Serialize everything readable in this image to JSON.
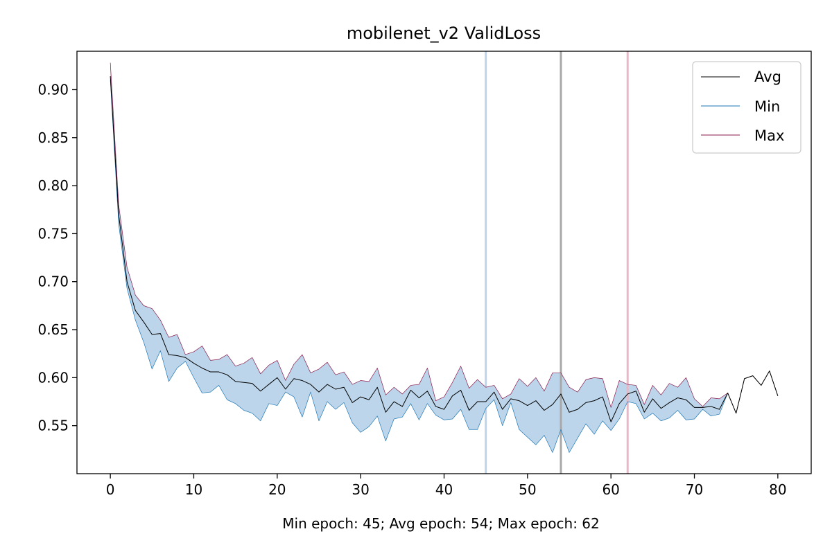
{
  "chart_data": {
    "type": "line",
    "title": "mobilenet_v2 ValidLoss",
    "xlabel": "Min epoch: 45; Avg epoch: 54; Max epoch: 62",
    "ylabel": "",
    "xlim": [
      -4,
      84
    ],
    "ylim": [
      0.5,
      0.94
    ],
    "xticks": [
      0,
      10,
      20,
      30,
      40,
      50,
      60,
      70,
      80
    ],
    "xtick_labels": [
      "0",
      "10",
      "20",
      "30",
      "40",
      "50",
      "60",
      "70",
      "80"
    ],
    "yticks": [
      0.55,
      0.6,
      0.65,
      0.7,
      0.75,
      0.8,
      0.85,
      0.9
    ],
    "ytick_labels": [
      "0.55",
      "0.60",
      "0.65",
      "0.70",
      "0.75",
      "0.80",
      "0.85",
      "0.90"
    ],
    "grid": false,
    "legend": {
      "position": "top-right",
      "entries": [
        "Avg",
        "Min",
        "Max"
      ]
    },
    "colors": {
      "avg": "#000000",
      "min": "#1f77b4",
      "max": "#8b1a4b",
      "band": "#bcd5ea",
      "vline_min": "#bcd5ea",
      "vline_avg": "#a8a8a8",
      "vline_max": "#e3bac8"
    },
    "vlines": {
      "min_epoch": 45,
      "avg_epoch": 54,
      "max_epoch": 62
    },
    "x": [
      0,
      1,
      2,
      3,
      4,
      5,
      6,
      7,
      8,
      9,
      10,
      11,
      12,
      13,
      14,
      15,
      16,
      17,
      18,
      19,
      20,
      21,
      22,
      23,
      24,
      25,
      26,
      27,
      28,
      29,
      30,
      31,
      32,
      33,
      34,
      35,
      36,
      37,
      38,
      39,
      40,
      41,
      42,
      43,
      44,
      45,
      46,
      47,
      48,
      49,
      50,
      51,
      52,
      53,
      54,
      55,
      56,
      57,
      58,
      59,
      60,
      61,
      62,
      63,
      64,
      65,
      66,
      67,
      68,
      69,
      70,
      71,
      72,
      73,
      74,
      75,
      76,
      77,
      78,
      79,
      80
    ],
    "series": [
      {
        "name": "Avg",
        "values": [
          0.914,
          0.77,
          0.7,
          0.67,
          0.658,
          0.645,
          0.646,
          0.624,
          0.623,
          0.621,
          0.615,
          0.61,
          0.606,
          0.606,
          0.603,
          0.596,
          0.595,
          0.594,
          0.586,
          0.593,
          0.6,
          0.588,
          0.599,
          0.597,
          0.593,
          0.585,
          0.593,
          0.588,
          0.59,
          0.574,
          0.58,
          0.577,
          0.59,
          0.564,
          0.575,
          0.57,
          0.587,
          0.579,
          0.586,
          0.57,
          0.567,
          0.581,
          0.587,
          0.566,
          0.575,
          0.575,
          0.585,
          0.567,
          0.578,
          0.576,
          0.571,
          0.576,
          0.566,
          0.572,
          0.583,
          0.564,
          0.567,
          0.574,
          0.576,
          0.58,
          0.554,
          0.573,
          0.583,
          0.586,
          0.564,
          0.578,
          0.568,
          0.574,
          0.579,
          0.577,
          0.569,
          0.569,
          0.57,
          0.567,
          0.584,
          0.563,
          0.599,
          0.602,
          0.592,
          0.607,
          0.581
        ]
      },
      {
        "name": "Min",
        "values": [
          0.91,
          0.76,
          0.693,
          0.66,
          0.637,
          0.609,
          0.628,
          0.596,
          0.61,
          0.617,
          0.6,
          0.584,
          0.585,
          0.592,
          0.577,
          0.573,
          0.566,
          0.563,
          0.555,
          0.573,
          0.571,
          0.585,
          0.58,
          0.559,
          0.585,
          0.555,
          0.575,
          0.567,
          0.574,
          0.553,
          0.543,
          0.549,
          0.56,
          0.534,
          0.557,
          0.559,
          0.573,
          0.556,
          0.573,
          0.561,
          0.556,
          0.557,
          0.567,
          0.546,
          0.546,
          0.568,
          0.577,
          0.55,
          0.574,
          0.546,
          0.538,
          0.53,
          0.54,
          0.522,
          0.546,
          0.522,
          0.537,
          0.552,
          0.541,
          0.555,
          0.545,
          0.557,
          0.575,
          0.573,
          0.557,
          0.563,
          0.555,
          0.558,
          0.566,
          0.556,
          0.557,
          0.567,
          0.56,
          0.562,
          0.584,
          0.563,
          0.599,
          0.602,
          0.592,
          0.607,
          0.581
        ]
      },
      {
        "name": "Max",
        "values": [
          0.928,
          0.78,
          0.715,
          0.686,
          0.675,
          0.672,
          0.66,
          0.642,
          0.645,
          0.624,
          0.627,
          0.633,
          0.618,
          0.619,
          0.624,
          0.612,
          0.615,
          0.621,
          0.604,
          0.613,
          0.618,
          0.597,
          0.614,
          0.624,
          0.605,
          0.609,
          0.616,
          0.603,
          0.606,
          0.593,
          0.597,
          0.596,
          0.61,
          0.582,
          0.59,
          0.583,
          0.592,
          0.593,
          0.61,
          0.576,
          0.58,
          0.595,
          0.612,
          0.589,
          0.598,
          0.59,
          0.592,
          0.578,
          0.583,
          0.599,
          0.591,
          0.6,
          0.586,
          0.605,
          0.605,
          0.59,
          0.585,
          0.598,
          0.6,
          0.599,
          0.569,
          0.597,
          0.593,
          0.592,
          0.572,
          0.592,
          0.582,
          0.594,
          0.59,
          0.6,
          0.578,
          0.57,
          0.579,
          0.578,
          0.584,
          0.563,
          0.599,
          0.602,
          0.592,
          0.607,
          0.581
        ]
      }
    ]
  }
}
